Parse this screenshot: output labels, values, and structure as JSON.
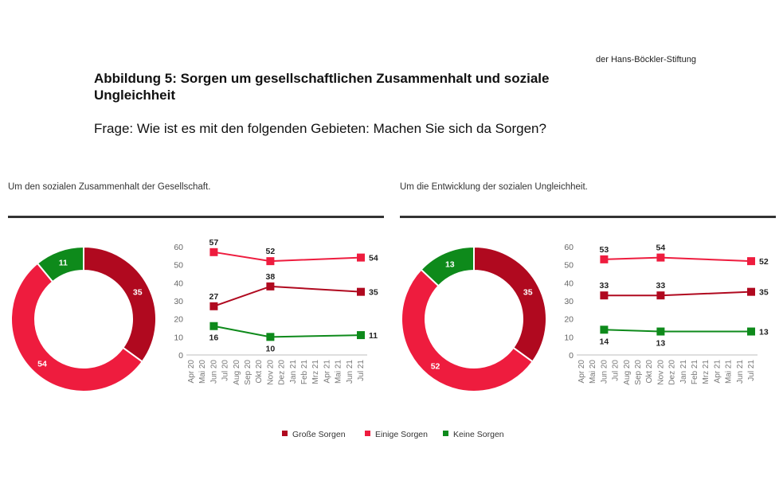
{
  "header": {
    "source": "der Hans-Böckler-Stiftung",
    "title": "Abbildung 5: Sorgen um gesellschaftlichen Zusammenhalt und soziale Ungleichheit",
    "question": "Frage: Wie ist es mit den folgenden Gebieten: Machen Sie sich da Sorgen?"
  },
  "colors": {
    "grosse": "#b0091f",
    "einige": "#ee1c3e",
    "keine": "#0e8a1b",
    "axis": "#777777",
    "grid": "#dddddd"
  },
  "legend": [
    {
      "label": "Große Sorgen",
      "color": "#b0091f"
    },
    {
      "label": "Einige Sorgen",
      "color": "#ee1c3e"
    },
    {
      "label": "Keine Sorgen",
      "color": "#0e8a1b"
    }
  ],
  "chart_data": [
    {
      "type": "pie",
      "panel_title": "Um den sozialen Zusammenhalt der Gesellschaft.",
      "donut": true,
      "categories": [
        "Große Sorgen",
        "Einige Sorgen",
        "Keine Sorgen"
      ],
      "values": [
        35,
        54,
        11
      ]
    },
    {
      "type": "line",
      "panel": "Um den sozialen Zusammenhalt der Gesellschaft.",
      "x": [
        "Apr 20",
        "Mai 20",
        "Jun 20",
        "Jul 20",
        "Aug 20",
        "Sep 20",
        "Okt 20",
        "Nov 20",
        "Dez 20",
        "Jan 21",
        "Feb 21",
        "Mrz 21",
        "Apr 21",
        "Mai 21",
        "Jun 21",
        "Jul 21"
      ],
      "ylim": [
        0,
        60
      ],
      "yticks": [
        0,
        10,
        20,
        30,
        40,
        50,
        60
      ],
      "grid": false,
      "series": [
        {
          "name": "Große Sorgen",
          "points": [
            [
              "Jun 20",
              27
            ],
            [
              "Nov 20",
              38
            ],
            [
              "Jul 21",
              35
            ]
          ]
        },
        {
          "name": "Einige Sorgen",
          "points": [
            [
              "Jun 20",
              57
            ],
            [
              "Nov 20",
              52
            ],
            [
              "Jul 21",
              54
            ]
          ]
        },
        {
          "name": "Keine Sorgen",
          "points": [
            [
              "Jun 20",
              16
            ],
            [
              "Nov 20",
              10
            ],
            [
              "Jul 21",
              11
            ]
          ]
        }
      ]
    },
    {
      "type": "pie",
      "panel_title": "Um die Entwicklung der sozialen Ungleichheit.",
      "donut": true,
      "categories": [
        "Große Sorgen",
        "Einige Sorgen",
        "Keine Sorgen"
      ],
      "values": [
        35,
        52,
        13
      ]
    },
    {
      "type": "line",
      "panel": "Um die Entwicklung der sozialen Ungleichheit.",
      "x": [
        "Apr 20",
        "Mai 20",
        "Jun 20",
        "Jul 20",
        "Aug 20",
        "Sep 20",
        "Okt 20",
        "Nov 20",
        "Dez 20",
        "Jan 21",
        "Feb 21",
        "Mrz 21",
        "Apr 21",
        "Mai 21",
        "Jun 21",
        "Jul 21"
      ],
      "ylim": [
        0,
        60
      ],
      "yticks": [
        0,
        10,
        20,
        30,
        40,
        50,
        60
      ],
      "grid": false,
      "series": [
        {
          "name": "Große Sorgen",
          "points": [
            [
              "Jun 20",
              33
            ],
            [
              "Nov 20",
              33
            ],
            [
              "Jul 21",
              35
            ]
          ]
        },
        {
          "name": "Einige Sorgen",
          "points": [
            [
              "Jun 20",
              53
            ],
            [
              "Nov 20",
              54
            ],
            [
              "Jul 21",
              52
            ]
          ]
        },
        {
          "name": "Keine Sorgen",
          "points": [
            [
              "Jun 20",
              14
            ],
            [
              "Nov 20",
              13
            ],
            [
              "Jul 21",
              13
            ]
          ]
        }
      ]
    }
  ]
}
